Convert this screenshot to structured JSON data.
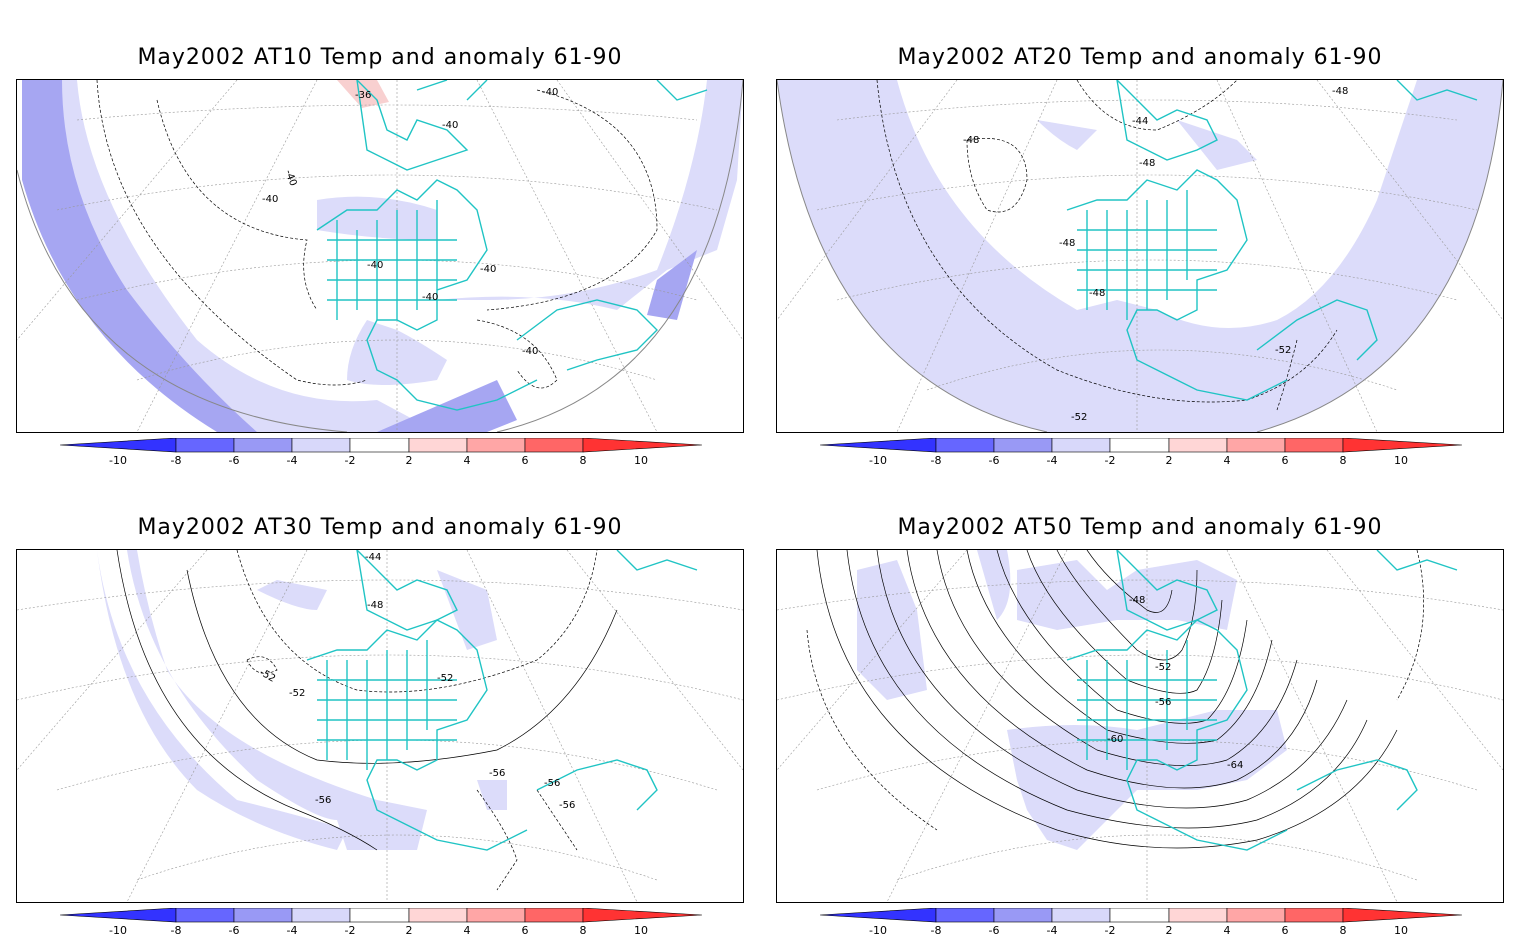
{
  "panels": [
    {
      "title": "May2002 AT10 Temp and anomaly 61-90",
      "contour_labels": [
        "-36",
        "-40",
        "-40",
        "-40",
        "-40",
        "-40",
        "-40",
        "-40",
        "-40"
      ]
    },
    {
      "title": "May2002 AT20 Temp and anomaly 61-90",
      "contour_labels": [
        "-48",
        "-44",
        "-48",
        "-48",
        "-48",
        "-48",
        "-52",
        "-52"
      ]
    },
    {
      "title": "May2002 AT30 Temp and anomaly 61-90",
      "contour_labels": [
        "-44",
        "-48",
        "-52",
        "-52",
        "-52",
        "-56",
        "-56",
        "-56",
        "-56"
      ]
    },
    {
      "title": "May2002 AT50 Temp and anomaly 61-90",
      "contour_labels": [
        "-48",
        "-52",
        "-56",
        "-60",
        "-64"
      ]
    }
  ],
  "colorbar": {
    "labels": [
      "-10",
      "-8",
      "-6",
      "-4",
      "-2",
      "2",
      "4",
      "6",
      "8",
      "10"
    ],
    "colors": [
      "#3333ff",
      "#6666ff",
      "#9999f5",
      "#d8d8fa",
      "#ffffff",
      "#ffd6d6",
      "#ffa6a6",
      "#ff6666",
      "#ff3333"
    ]
  },
  "colors": {
    "coastline": "#20c4c4",
    "grid": "#999999",
    "anomaly_light": "#dcdcfa",
    "anomaly_medium": "#a6a6f2",
    "anomaly_warm": "#f8d0d0"
  }
}
